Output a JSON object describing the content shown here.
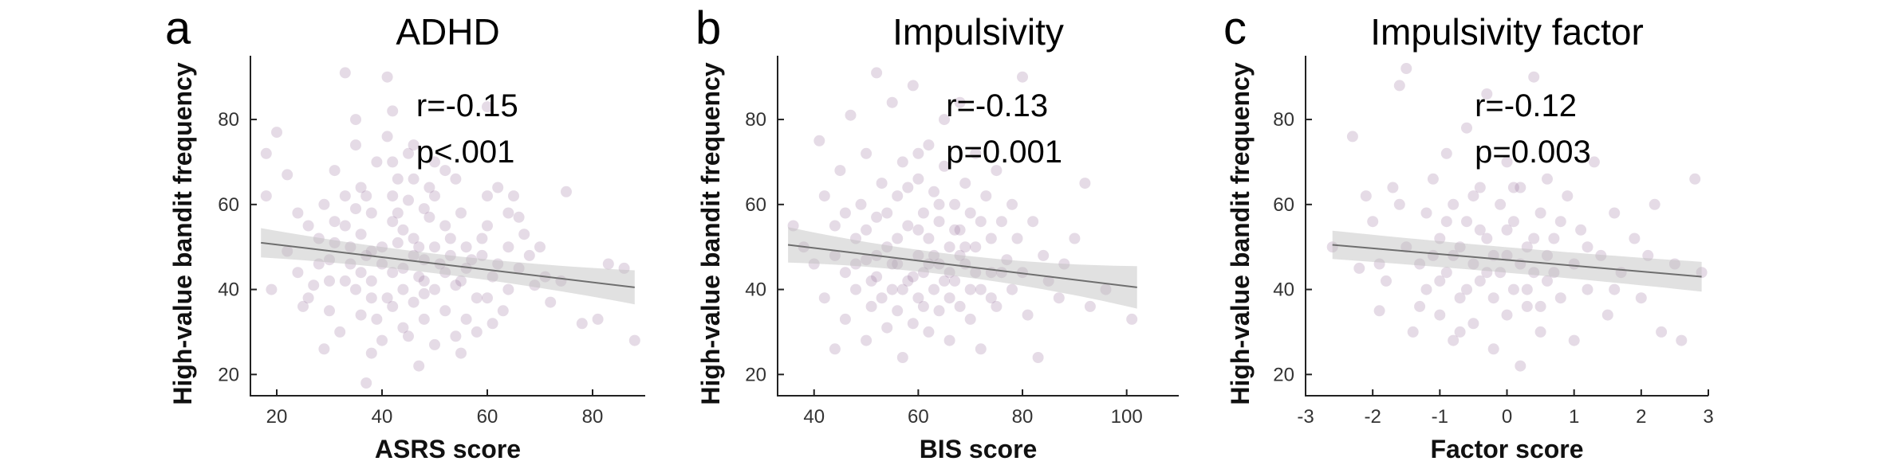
{
  "colors": {
    "point": "#8a5a8c",
    "fit_line": "#6e6e6e",
    "ci_band": "#bdbdbd"
  },
  "chart_data": [
    {
      "type": "scatter",
      "panel": "a",
      "title": "ADHD",
      "xlabel": "ASRS score",
      "ylabel": "High-value bandit frequency",
      "xlim": [
        15,
        90
      ],
      "ylim": [
        15,
        95
      ],
      "xticks": [
        20,
        40,
        60,
        80
      ],
      "yticks": [
        20,
        40,
        60,
        80
      ],
      "stats": {
        "r": "r=-0.15",
        "p": "p<.001"
      },
      "fit": {
        "x": [
          17,
          88
        ],
        "y": [
          51,
          40.5
        ],
        "ci_half_width": [
          2.3,
          4
        ]
      },
      "points": [
        [
          20,
          77
        ],
        [
          18,
          72
        ],
        [
          22,
          67
        ],
        [
          18,
          62
        ],
        [
          24,
          58
        ],
        [
          22,
          49
        ],
        [
          19,
          40
        ],
        [
          24,
          44
        ],
        [
          28,
          52
        ],
        [
          28,
          46
        ],
        [
          30,
          42
        ],
        [
          26,
          38
        ],
        [
          30,
          35
        ],
        [
          32,
          30
        ],
        [
          29,
          26
        ],
        [
          33,
          55
        ],
        [
          33,
          62
        ],
        [
          31,
          68
        ],
        [
          35,
          74
        ],
        [
          33,
          91
        ],
        [
          35,
          80
        ],
        [
          36,
          64
        ],
        [
          38,
          58
        ],
        [
          38,
          49
        ],
        [
          36,
          44
        ],
        [
          38,
          38
        ],
        [
          36,
          34
        ],
        [
          40,
          28
        ],
        [
          38,
          25
        ],
        [
          37,
          18
        ],
        [
          41,
          90
        ],
        [
          42,
          82
        ],
        [
          42,
          70
        ],
        [
          42,
          62
        ],
        [
          42,
          56
        ],
        [
          40,
          50
        ],
        [
          44,
          45
        ],
        [
          44,
          40
        ],
        [
          42,
          36
        ],
        [
          44,
          31
        ],
        [
          46,
          74
        ],
        [
          46,
          66
        ],
        [
          48,
          59
        ],
        [
          46,
          52
        ],
        [
          48,
          47
        ],
        [
          48,
          42
        ],
        [
          46,
          37
        ],
        [
          48,
          33
        ],
        [
          47,
          22
        ],
        [
          50,
          70
        ],
        [
          50,
          62
        ],
        [
          52,
          55
        ],
        [
          50,
          50
        ],
        [
          52,
          44
        ],
        [
          50,
          40
        ],
        [
          52,
          35
        ],
        [
          54,
          29
        ],
        [
          54,
          66
        ],
        [
          55,
          58
        ],
        [
          56,
          50
        ],
        [
          56,
          45
        ],
        [
          54,
          41
        ],
        [
          58,
          38
        ],
        [
          56,
          33
        ],
        [
          60,
          62
        ],
        [
          60,
          55
        ],
        [
          59,
          48
        ],
        [
          61,
          43
        ],
        [
          60,
          38
        ],
        [
          61,
          32
        ],
        [
          60,
          83
        ],
        [
          62,
          64
        ],
        [
          64,
          58
        ],
        [
          64,
          50
        ],
        [
          62,
          46
        ],
        [
          64,
          40
        ],
        [
          66,
          57
        ],
        [
          67,
          53
        ],
        [
          66,
          45
        ],
        [
          68,
          48
        ],
        [
          70,
          50
        ],
        [
          71,
          43
        ],
        [
          74,
          42
        ],
        [
          75,
          63
        ],
        [
          72,
          37
        ],
        [
          78,
          32
        ],
        [
          83,
          46
        ],
        [
          81,
          33
        ],
        [
          86,
          45
        ],
        [
          88,
          28
        ],
        [
          34,
          50
        ],
        [
          44,
          54
        ],
        [
          36,
          53
        ],
        [
          40,
          46
        ],
        [
          46,
          48
        ],
        [
          42,
          44
        ],
        [
          38,
          42
        ],
        [
          48,
          39
        ],
        [
          34,
          46
        ],
        [
          30,
          47
        ],
        [
          27,
          41
        ],
        [
          25,
          36
        ],
        [
          35,
          59
        ],
        [
          43,
          66
        ],
        [
          45,
          61
        ],
        [
          49,
          57
        ],
        [
          53,
          52
        ],
        [
          57,
          47
        ],
        [
          39,
          70
        ],
        [
          41,
          76
        ],
        [
          45,
          72
        ],
        [
          26,
          55
        ],
        [
          31,
          51
        ],
        [
          37,
          48
        ],
        [
          43,
          51
        ],
        [
          47,
          43
        ],
        [
          51,
          46
        ],
        [
          55,
          42
        ],
        [
          35,
          40
        ],
        [
          41,
          38
        ],
        [
          47,
          50
        ],
        [
          53,
          48
        ],
        [
          59,
          52
        ],
        [
          29,
          60
        ],
        [
          33,
          42
        ],
        [
          39,
          33
        ],
        [
          45,
          29
        ],
        [
          50,
          27
        ],
        [
          55,
          25
        ],
        [
          58,
          30
        ],
        [
          63,
          35
        ],
        [
          65,
          62
        ],
        [
          69,
          41
        ],
        [
          31,
          56
        ],
        [
          37,
          62
        ],
        [
          43,
          58
        ],
        [
          49,
          64
        ],
        [
          52,
          68
        ]
      ]
    },
    {
      "type": "scatter",
      "panel": "b",
      "title": "Impulsivity",
      "xlabel": "BIS score",
      "ylabel": "High-value bandit frequency",
      "xlim": [
        33,
        110
      ],
      "ylim": [
        15,
        95
      ],
      "xticks": [
        40,
        60,
        80,
        100
      ],
      "yticks": [
        20,
        40,
        60,
        80
      ],
      "stats": {
        "r": "r=-0.13",
        "p": "p=0.001"
      },
      "fit": {
        "x": [
          35,
          102
        ],
        "y": [
          50.5,
          40.5
        ],
        "ci_half_width": [
          2.5,
          5
        ]
      },
      "points": [
        [
          36,
          55
        ],
        [
          38,
          50
        ],
        [
          40,
          46
        ],
        [
          41,
          75
        ],
        [
          42,
          62
        ],
        [
          42,
          38
        ],
        [
          44,
          26
        ],
        [
          44,
          55
        ],
        [
          45,
          68
        ],
        [
          46,
          44
        ],
        [
          46,
          33
        ],
        [
          47,
          81
        ],
        [
          48,
          52
        ],
        [
          48,
          40
        ],
        [
          49,
          60
        ],
        [
          50,
          72
        ],
        [
          50,
          47
        ],
        [
          50,
          28
        ],
        [
          51,
          36
        ],
        [
          52,
          91
        ],
        [
          52,
          57
        ],
        [
          52,
          43
        ],
        [
          53,
          65
        ],
        [
          54,
          50
        ],
        [
          54,
          31
        ],
        [
          55,
          84
        ],
        [
          55,
          40
        ],
        [
          56,
          62
        ],
        [
          56,
          46
        ],
        [
          56,
          35
        ],
        [
          57,
          70
        ],
        [
          57,
          24
        ],
        [
          58,
          55
        ],
        [
          58,
          42
        ],
        [
          59,
          88
        ],
        [
          59,
          32
        ],
        [
          60,
          66
        ],
        [
          60,
          48
        ],
        [
          60,
          38
        ],
        [
          61,
          58
        ],
        [
          61,
          44
        ],
        [
          62,
          74
        ],
        [
          62,
          52
        ],
        [
          62,
          30
        ],
        [
          63,
          63
        ],
        [
          63,
          40
        ],
        [
          64,
          56
        ],
        [
          64,
          46
        ],
        [
          64,
          35
        ],
        [
          65,
          80
        ],
        [
          65,
          69
        ],
        [
          66,
          50
        ],
        [
          66,
          28
        ],
        [
          67,
          60
        ],
        [
          67,
          42
        ],
        [
          68,
          84
        ],
        [
          68,
          54
        ],
        [
          68,
          36
        ],
        [
          69,
          65
        ],
        [
          69,
          46
        ],
        [
          70,
          58
        ],
        [
          70,
          33
        ],
        [
          71,
          72
        ],
        [
          71,
          50
        ],
        [
          72,
          40
        ],
        [
          72,
          26
        ],
        [
          73,
          62
        ],
        [
          74,
          52
        ],
        [
          74,
          44
        ],
        [
          75,
          68
        ],
        [
          75,
          36
        ],
        [
          76,
          56
        ],
        [
          77,
          47
        ],
        [
          78,
          60
        ],
        [
          78,
          40
        ],
        [
          79,
          52
        ],
        [
          80,
          90
        ],
        [
          80,
          44
        ],
        [
          81,
          34
        ],
        [
          82,
          56
        ],
        [
          83,
          24
        ],
        [
          84,
          48
        ],
        [
          85,
          42
        ],
        [
          87,
          38
        ],
        [
          88,
          46
        ],
        [
          90,
          52
        ],
        [
          92,
          65
        ],
        [
          93,
          36
        ],
        [
          96,
          40
        ],
        [
          101,
          33
        ],
        [
          58,
          64
        ],
        [
          60,
          72
        ],
        [
          62,
          46
        ],
        [
          64,
          60
        ],
        [
          66,
          44
        ],
        [
          54,
          58
        ],
        [
          56,
          52
        ],
        [
          52,
          48
        ],
        [
          50,
          54
        ],
        [
          48,
          46
        ],
        [
          46,
          58
        ],
        [
          44,
          48
        ],
        [
          66,
          38
        ],
        [
          68,
          48
        ],
        [
          70,
          40
        ],
        [
          72,
          56
        ],
        [
          74,
          38
        ],
        [
          76,
          44
        ],
        [
          60,
          54
        ],
        [
          63,
          48
        ],
        [
          57,
          40
        ],
        [
          55,
          46
        ],
        [
          53,
          38
        ],
        [
          51,
          42
        ],
        [
          65,
          42
        ],
        [
          67,
          54
        ],
        [
          69,
          50
        ],
        [
          71,
          44
        ],
        [
          61,
          36
        ],
        [
          59,
          43
        ]
      ]
    },
    {
      "type": "scatter",
      "panel": "c",
      "title": "Impulsivity factor",
      "xlabel": "Factor score",
      "ylabel": "High-value bandit frequency",
      "xlim": [
        -3,
        3
      ],
      "ylim": [
        15,
        95
      ],
      "xticks": [
        -3,
        -2,
        -1,
        0,
        1,
        2,
        3
      ],
      "yticks": [
        20,
        40,
        60,
        80
      ],
      "stats": {
        "r": "r=-0.12",
        "p": "p=0.003"
      },
      "fit": {
        "x": [
          -2.6,
          2.9
        ],
        "y": [
          50.5,
          43
        ],
        "ci_half_width": [
          3,
          3.5
        ]
      },
      "points": [
        [
          -2.6,
          50
        ],
        [
          -2.3,
          76
        ],
        [
          -2.2,
          45
        ],
        [
          -2.0,
          56
        ],
        [
          -1.9,
          35
        ],
        [
          -1.8,
          42
        ],
        [
          -1.7,
          64
        ],
        [
          -1.6,
          88
        ],
        [
          -1.5,
          92
        ],
        [
          -1.5,
          50
        ],
        [
          -1.4,
          30
        ],
        [
          -1.3,
          46
        ],
        [
          -1.2,
          58
        ],
        [
          -1.2,
          40
        ],
        [
          -1.1,
          66
        ],
        [
          -1.0,
          52
        ],
        [
          -1.0,
          34
        ],
        [
          -0.9,
          72
        ],
        [
          -0.9,
          44
        ],
        [
          -0.8,
          60
        ],
        [
          -0.8,
          28
        ],
        [
          -0.7,
          50
        ],
        [
          -0.7,
          38
        ],
        [
          -0.6,
          78
        ],
        [
          -0.6,
          56
        ],
        [
          -0.5,
          46
        ],
        [
          -0.5,
          32
        ],
        [
          -0.4,
          64
        ],
        [
          -0.4,
          42
        ],
        [
          -0.3,
          86
        ],
        [
          -0.3,
          52
        ],
        [
          -0.2,
          38
        ],
        [
          -0.2,
          26
        ],
        [
          -0.1,
          60
        ],
        [
          -0.1,
          44
        ],
        [
          0.0,
          70
        ],
        [
          0.0,
          48
        ],
        [
          0.0,
          34
        ],
        [
          0.1,
          56
        ],
        [
          0.1,
          40
        ],
        [
          0.2,
          64
        ],
        [
          0.2,
          22
        ],
        [
          0.3,
          50
        ],
        [
          0.3,
          36
        ],
        [
          0.4,
          90
        ],
        [
          0.4,
          44
        ],
        [
          0.5,
          58
        ],
        [
          0.5,
          30
        ],
        [
          0.6,
          66
        ],
        [
          0.6,
          42
        ],
        [
          0.7,
          52
        ],
        [
          0.8,
          38
        ],
        [
          0.9,
          62
        ],
        [
          1.0,
          46
        ],
        [
          1.0,
          28
        ],
        [
          1.1,
          54
        ],
        [
          1.2,
          40
        ],
        [
          1.3,
          70
        ],
        [
          1.4,
          48
        ],
        [
          1.5,
          34
        ],
        [
          1.6,
          58
        ],
        [
          1.7,
          44
        ],
        [
          1.9,
          52
        ],
        [
          2.0,
          38
        ],
        [
          2.2,
          60
        ],
        [
          2.3,
          30
        ],
        [
          2.5,
          46
        ],
        [
          2.6,
          28
        ],
        [
          2.8,
          66
        ],
        [
          2.9,
          44
        ],
        [
          -1.6,
          60
        ],
        [
          -1.3,
          36
        ],
        [
          -1.0,
          42
        ],
        [
          -0.8,
          48
        ],
        [
          -0.6,
          40
        ],
        [
          -0.4,
          54
        ],
        [
          -0.2,
          48
        ],
        [
          0.0,
          54
        ],
        [
          0.2,
          46
        ],
        [
          0.4,
          52
        ],
        [
          0.6,
          48
        ],
        [
          0.8,
          56
        ],
        [
          -0.9,
          56
        ],
        [
          -0.5,
          62
        ],
        [
          0.1,
          64
        ],
        [
          -1.1,
          48
        ],
        [
          -0.3,
          44
        ],
        [
          0.3,
          40
        ],
        [
          0.7,
          44
        ],
        [
          1.2,
          50
        ],
        [
          1.6,
          40
        ],
        [
          -1.9,
          46
        ],
        [
          -2.1,
          62
        ],
        [
          2.1,
          48
        ],
        [
          -0.7,
          30
        ],
        [
          0.5,
          36
        ]
      ]
    }
  ]
}
